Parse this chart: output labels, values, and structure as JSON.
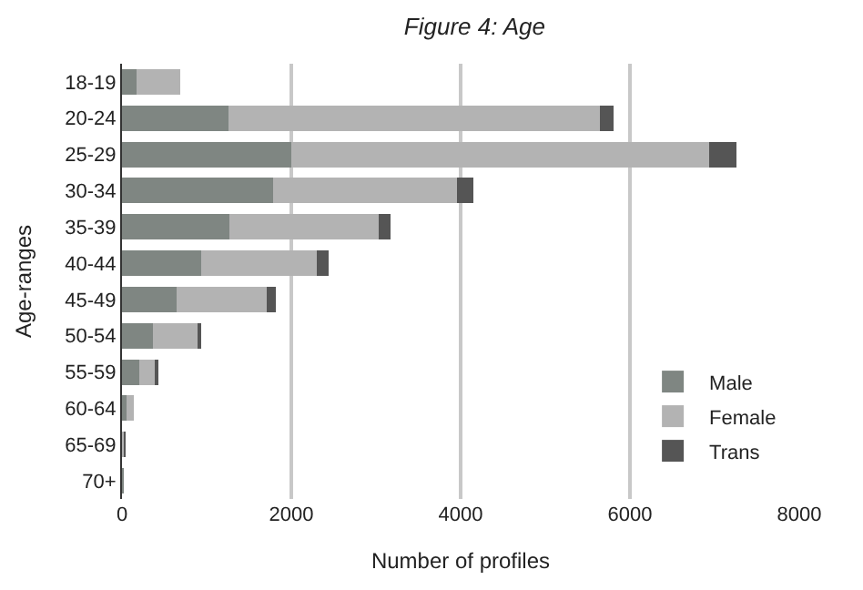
{
  "chart_data": {
    "type": "bar",
    "orientation": "horizontal",
    "stacked": true,
    "title": "Figure 4: Age",
    "xlabel": "Number of profiles",
    "ylabel": "Age-ranges",
    "categories": [
      "18-19",
      "20-24",
      "25-29",
      "30-34",
      "35-39",
      "40-44",
      "45-49",
      "50-54",
      "55-59",
      "60-64",
      "65-69",
      "70+"
    ],
    "series": [
      {
        "name": "Male",
        "color": "#7f8682",
        "values": [
          170,
          1260,
          2000,
          1780,
          1270,
          930,
          640,
          370,
          200,
          50,
          20,
          10
        ]
      },
      {
        "name": "Female",
        "color": "#b3b3b3",
        "values": [
          520,
          4390,
          4940,
          2180,
          1760,
          1370,
          1070,
          520,
          190,
          90,
          10,
          0
        ]
      },
      {
        "name": "Trans",
        "color": "#555555",
        "values": [
          0,
          160,
          320,
          190,
          140,
          140,
          110,
          50,
          40,
          0,
          10,
          0
        ]
      }
    ],
    "xlim": [
      0,
      8000
    ],
    "xticks": [
      0,
      2000,
      4000,
      6000,
      8000
    ],
    "grid": "x",
    "legend": "bottom right"
  }
}
